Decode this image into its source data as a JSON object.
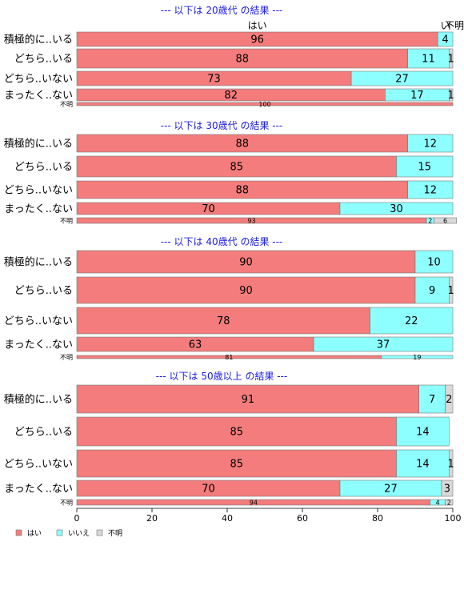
{
  "chart_data": {
    "type": "bar",
    "orientation": "horizontal",
    "stacked": true,
    "xlim": [
      0,
      100
    ],
    "x_ticks": [
      0,
      20,
      40,
      60,
      80,
      100
    ],
    "grid": false,
    "legend_position": "bottom-left",
    "series": [
      {
        "name": "はい",
        "color": "#f47c7c"
      },
      {
        "name": "いいえ",
        "color": "#8effff"
      },
      {
        "name": "不明",
        "color": "#d9d9d9"
      }
    ],
    "header_labels": [
      "はい",
      "いいえ",
      "不明"
    ],
    "header_label_texts": [
      "はい",
      "い",
      "不明"
    ],
    "panels": [
      {
        "title": "--- 以下は 20歳代 の結果 ---",
        "rows": [
          {
            "label": "積極的に..いる",
            "values": [
              96,
              4,
              0
            ],
            "value_labels": [
              "96",
              "4",
              ""
            ]
          },
          {
            "label": "どちら..いる",
            "values": [
              88,
              11,
              1
            ],
            "value_labels": [
              "88",
              "11",
              "1"
            ]
          },
          {
            "label": "どちら..いない",
            "values": [
              73,
              27,
              0
            ],
            "value_labels": [
              "73",
              "27",
              ""
            ]
          },
          {
            "label": "まったく..ない",
            "values": [
              82,
              17,
              1
            ],
            "value_labels": [
              "82",
              "17",
              "1"
            ]
          },
          {
            "label": "不明",
            "values": [
              100,
              0,
              0
            ],
            "value_labels": [
              "100",
              "",
              ""
            ]
          }
        ]
      },
      {
        "title": "--- 以下は 30歳代 の結果 ---",
        "rows": [
          {
            "label": "積極的に..いる",
            "values": [
              88,
              12,
              0
            ],
            "value_labels": [
              "88",
              "12",
              ""
            ]
          },
          {
            "label": "どちら..いる",
            "values": [
              85,
              15,
              0
            ],
            "value_labels": [
              "85",
              "15",
              ""
            ]
          },
          {
            "label": "どちら..いない",
            "values": [
              88,
              12,
              0
            ],
            "value_labels": [
              "88",
              "12",
              ""
            ]
          },
          {
            "label": "まったく..ない",
            "values": [
              70,
              30,
              0
            ],
            "value_labels": [
              "70",
              "30",
              ""
            ]
          },
          {
            "label": "不明",
            "values": [
              93,
              2,
              6
            ],
            "value_labels": [
              "93",
              "2",
              "6"
            ]
          }
        ]
      },
      {
        "title": "--- 以下は 40歳代 の結果 ---",
        "rows": [
          {
            "label": "積極的に..いる",
            "values": [
              90,
              10,
              0
            ],
            "value_labels": [
              "90",
              "10",
              ""
            ]
          },
          {
            "label": "どちら..いる",
            "values": [
              90,
              9,
              1
            ],
            "value_labels": [
              "90",
              "9",
              "1"
            ]
          },
          {
            "label": "どちら..いない",
            "values": [
              78,
              22,
              0
            ],
            "value_labels": [
              "78",
              "22",
              ""
            ]
          },
          {
            "label": "まったく..ない",
            "values": [
              63,
              37,
              0
            ],
            "value_labels": [
              "63",
              "37",
              ""
            ]
          },
          {
            "label": "不明",
            "values": [
              81,
              19,
              0
            ],
            "value_labels": [
              "81",
              "19",
              ""
            ]
          }
        ]
      },
      {
        "title": "--- 以下は 50歳以上 の結果 ---",
        "rows": [
          {
            "label": "積極的に..いる",
            "values": [
              91,
              7,
              2
            ],
            "value_labels": [
              "91",
              "7",
              "2"
            ]
          },
          {
            "label": "どちら..いる",
            "values": [
              85,
              14,
              0
            ],
            "value_labels": [
              "85",
              "14",
              ""
            ]
          },
          {
            "label": "どちら..いない",
            "values": [
              85,
              14,
              1
            ],
            "value_labels": [
              "85",
              "14",
              "1"
            ]
          },
          {
            "label": "まったく..ない",
            "values": [
              70,
              27,
              3
            ],
            "value_labels": [
              "70",
              "27",
              "3"
            ]
          },
          {
            "label": "不明",
            "values": [
              94,
              4,
              2
            ],
            "value_labels": [
              "94",
              "4",
              "2"
            ]
          }
        ]
      }
    ]
  }
}
